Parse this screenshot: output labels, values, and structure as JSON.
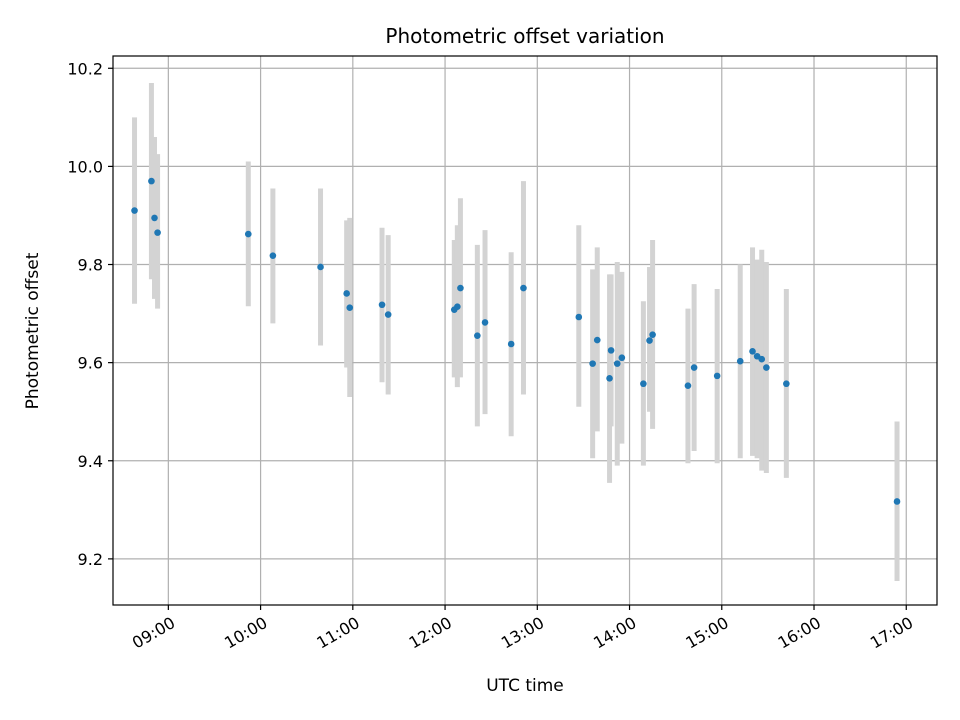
{
  "chart_data": {
    "type": "scatter",
    "title": "Photometric offset variation",
    "xlabel": "UTC time",
    "ylabel": "Photometric offset",
    "xlim": [
      "08:24",
      "17:20"
    ],
    "ylim": [
      9.106,
      10.225
    ],
    "x_ticks": [
      "09:00",
      "10:00",
      "11:00",
      "12:00",
      "13:00",
      "14:00",
      "15:00",
      "16:00",
      "17:00"
    ],
    "y_ticks": [
      9.2,
      9.4,
      9.6,
      9.8,
      10.0,
      10.2
    ],
    "y_tick_labels": [
      "9.2",
      "9.4",
      "9.6",
      "9.8",
      "10.0",
      "10.2"
    ],
    "grid": true,
    "point_color": "#1f77b4",
    "errorbar_color": "#d3d3d3",
    "points": [
      {
        "x": "08:38",
        "y": 9.91,
        "ylow": 9.72,
        "yhigh": 10.1
      },
      {
        "x": "08:49",
        "y": 9.97,
        "ylow": 9.77,
        "yhigh": 10.17
      },
      {
        "x": "08:51",
        "y": 9.895,
        "ylow": 9.73,
        "yhigh": 10.06
      },
      {
        "x": "08:53",
        "y": 9.865,
        "ylow": 9.71,
        "yhigh": 10.025
      },
      {
        "x": "09:52",
        "y": 9.862,
        "ylow": 9.715,
        "yhigh": 10.01
      },
      {
        "x": "10:08",
        "y": 9.818,
        "ylow": 9.68,
        "yhigh": 9.955
      },
      {
        "x": "10:39",
        "y": 9.795,
        "ylow": 9.635,
        "yhigh": 9.955
      },
      {
        "x": "10:56",
        "y": 9.741,
        "ylow": 9.59,
        "yhigh": 9.89
      },
      {
        "x": "10:58",
        "y": 9.712,
        "ylow": 9.53,
        "yhigh": 9.895
      },
      {
        "x": "11:19",
        "y": 9.718,
        "ylow": 9.56,
        "yhigh": 9.875
      },
      {
        "x": "11:23",
        "y": 9.698,
        "ylow": 9.535,
        "yhigh": 9.86
      },
      {
        "x": "12:06",
        "y": 9.708,
        "ylow": 9.57,
        "yhigh": 9.85
      },
      {
        "x": "12:08",
        "y": 9.714,
        "ylow": 9.55,
        "yhigh": 9.88
      },
      {
        "x": "12:10",
        "y": 9.752,
        "ylow": 9.57,
        "yhigh": 9.935
      },
      {
        "x": "12:21",
        "y": 9.655,
        "ylow": 9.47,
        "yhigh": 9.84
      },
      {
        "x": "12:26",
        "y": 9.682,
        "ylow": 9.495,
        "yhigh": 9.87
      },
      {
        "x": "12:43",
        "y": 9.638,
        "ylow": 9.45,
        "yhigh": 9.825
      },
      {
        "x": "12:51",
        "y": 9.752,
        "ylow": 9.535,
        "yhigh": 9.97
      },
      {
        "x": "13:27",
        "y": 9.693,
        "ylow": 9.51,
        "yhigh": 9.88
      },
      {
        "x": "13:36",
        "y": 9.598,
        "ylow": 9.405,
        "yhigh": 9.79
      },
      {
        "x": "13:39",
        "y": 9.646,
        "ylow": 9.46,
        "yhigh": 9.835
      },
      {
        "x": "13:47",
        "y": 9.568,
        "ylow": 9.355,
        "yhigh": 9.78
      },
      {
        "x": "13:48",
        "y": 9.625,
        "ylow": 9.47,
        "yhigh": 9.78
      },
      {
        "x": "13:52",
        "y": 9.598,
        "ylow": 9.39,
        "yhigh": 9.805
      },
      {
        "x": "13:55",
        "y": 9.61,
        "ylow": 9.435,
        "yhigh": 9.785
      },
      {
        "x": "14:09",
        "y": 9.557,
        "ylow": 9.39,
        "yhigh": 9.725
      },
      {
        "x": "14:13",
        "y": 9.645,
        "ylow": 9.5,
        "yhigh": 9.795
      },
      {
        "x": "14:15",
        "y": 9.657,
        "ylow": 9.465,
        "yhigh": 9.85
      },
      {
        "x": "14:38",
        "y": 9.553,
        "ylow": 9.395,
        "yhigh": 9.71
      },
      {
        "x": "14:42",
        "y": 9.59,
        "ylow": 9.42,
        "yhigh": 9.76
      },
      {
        "x": "14:57",
        "y": 9.573,
        "ylow": 9.395,
        "yhigh": 9.75
      },
      {
        "x": "15:12",
        "y": 9.603,
        "ylow": 9.405,
        "yhigh": 9.8
      },
      {
        "x": "15:20",
        "y": 9.623,
        "ylow": 9.41,
        "yhigh": 9.835
      },
      {
        "x": "15:23",
        "y": 9.613,
        "ylow": 9.405,
        "yhigh": 9.81
      },
      {
        "x": "15:26",
        "y": 9.607,
        "ylow": 9.38,
        "yhigh": 9.83
      },
      {
        "x": "15:29",
        "y": 9.59,
        "ylow": 9.375,
        "yhigh": 9.805
      },
      {
        "x": "15:42",
        "y": 9.557,
        "ylow": 9.365,
        "yhigh": 9.75
      },
      {
        "x": "16:54",
        "y": 9.317,
        "ylow": 9.155,
        "yhigh": 9.48
      }
    ]
  }
}
